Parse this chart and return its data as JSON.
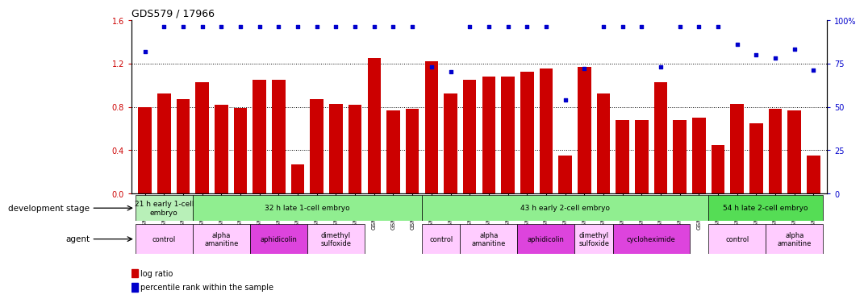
{
  "title": "GDS579 / 17966",
  "samples": [
    "GSM14695",
    "GSM14696",
    "GSM14697",
    "GSM14698",
    "GSM14699",
    "GSM14700",
    "GSM14707",
    "GSM14708",
    "GSM14709",
    "GSM14716",
    "GSM14717",
    "GSM14718",
    "GSM14722",
    "GSM14723",
    "GSM14724",
    "GSM14701",
    "GSM14702",
    "GSM14703",
    "GSM14710",
    "GSM14711",
    "GSM14712",
    "GSM14719",
    "GSM14720",
    "GSM14721",
    "GSM14725",
    "GSM14726",
    "GSM14727",
    "GSM14728",
    "GSM14729",
    "GSM14730",
    "GSM14704",
    "GSM14705",
    "GSM14706",
    "GSM14713",
    "GSM14714",
    "GSM14715"
  ],
  "log_ratio": [
    0.8,
    0.92,
    0.87,
    1.03,
    0.82,
    0.79,
    1.05,
    1.05,
    0.27,
    0.87,
    0.83,
    0.82,
    1.25,
    0.77,
    0.78,
    1.22,
    0.92,
    1.05,
    1.08,
    1.08,
    1.12,
    1.15,
    0.35,
    1.17,
    0.92,
    0.68,
    0.68,
    1.03,
    0.68,
    0.7,
    0.45,
    0.83,
    0.65,
    0.78,
    0.77,
    0.35
  ],
  "percentile": [
    82,
    96,
    96,
    96,
    96,
    96,
    96,
    96,
    96,
    96,
    96,
    96,
    96,
    96,
    96,
    73,
    70,
    96,
    96,
    96,
    96,
    96,
    54,
    72,
    96,
    96,
    96,
    73,
    96,
    96,
    96,
    86,
    80,
    78,
    83,
    71
  ],
  "bar_color": "#cc0000",
  "dot_color": "#0000cc",
  "ylim_left": [
    0,
    1.6
  ],
  "ylim_right": [
    0,
    100
  ],
  "yticks_left": [
    0,
    0.4,
    0.8,
    1.2,
    1.6
  ],
  "yticks_right": [
    0,
    25,
    50,
    75,
    100
  ],
  "hlines": [
    0.4,
    0.8,
    1.2
  ],
  "dev_stages": [
    {
      "label": "21 h early 1-cell\nembryо",
      "start": 0,
      "end": 3,
      "color": "#b0f0b0"
    },
    {
      "label": "32 h late 1-cell embryo",
      "start": 3,
      "end": 15,
      "color": "#90ee90"
    },
    {
      "label": "43 h early 2-cell embryo",
      "start": 15,
      "end": 30,
      "color": "#90ee90"
    },
    {
      "label": "54 h late 2-cell embryo",
      "start": 30,
      "end": 36,
      "color": "#66dd66"
    }
  ],
  "agents": [
    {
      "label": "control",
      "start": 0,
      "end": 3,
      "color": "#ffbbff"
    },
    {
      "label": "alpha\namanitine",
      "start": 3,
      "end": 6,
      "color": "#ffbbff"
    },
    {
      "label": "aphidicolin",
      "start": 6,
      "end": 9,
      "color": "#ee55ee"
    },
    {
      "label": "dimethyl\nsulfoxide",
      "start": 9,
      "end": 12,
      "color": "#ffbbff"
    },
    {
      "label": "control",
      "start": 15,
      "end": 17,
      "color": "#ffbbff"
    },
    {
      "label": "alpha\namanitine",
      "start": 17,
      "end": 20,
      "color": "#ffbbff"
    },
    {
      "label": "aphidicolin",
      "start": 20,
      "end": 23,
      "color": "#ee55ee"
    },
    {
      "label": "dimethyl\nsulfoxide",
      "start": 23,
      "end": 25,
      "color": "#ffbbff"
    },
    {
      "label": "cycloheximide",
      "start": 25,
      "end": 29,
      "color": "#ee55ee"
    },
    {
      "label": "control",
      "start": 30,
      "end": 33,
      "color": "#ffbbff"
    },
    {
      "label": "alpha\namanitine",
      "start": 33,
      "end": 36,
      "color": "#ffbbff"
    }
  ]
}
